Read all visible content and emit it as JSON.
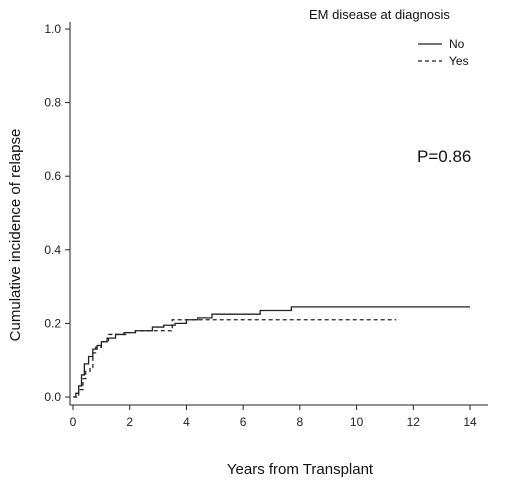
{
  "chart_data": {
    "type": "line",
    "title": "",
    "xlabel": "Years from Transplant",
    "ylabel": "Cumulative incidence of relapse",
    "xlim": [
      0,
      14
    ],
    "ylim": [
      0,
      1.0
    ],
    "x_ticks": [
      0,
      2,
      4,
      6,
      8,
      10,
      12,
      14
    ],
    "y_ticks": [
      0.0,
      0.2,
      0.4,
      0.6,
      0.8,
      1.0
    ],
    "x_tick_labels": [
      "0",
      "2",
      "4",
      "6",
      "8",
      "10",
      "12",
      "14"
    ],
    "y_tick_labels": [
      "0.0",
      "0.2",
      "0.4",
      "0.6",
      "0.8",
      "1.0"
    ],
    "grid": false,
    "legend": {
      "title": "EM disease at diagnosis",
      "placement": "top-right"
    },
    "annotation": "P=0.86",
    "series": [
      {
        "name": "No",
        "line_style": "solid",
        "points": [
          [
            0,
            0.0
          ],
          [
            0.1,
            0.01
          ],
          [
            0.2,
            0.03
          ],
          [
            0.3,
            0.06
          ],
          [
            0.4,
            0.09
          ],
          [
            0.55,
            0.11
          ],
          [
            0.7,
            0.13
          ],
          [
            0.85,
            0.14
          ],
          [
            1.0,
            0.15
          ],
          [
            1.2,
            0.16
          ],
          [
            1.5,
            0.17
          ],
          [
            1.8,
            0.175
          ],
          [
            2.2,
            0.18
          ],
          [
            2.8,
            0.19
          ],
          [
            3.2,
            0.195
          ],
          [
            3.6,
            0.2
          ],
          [
            4.0,
            0.21
          ],
          [
            4.4,
            0.215
          ],
          [
            4.9,
            0.225
          ],
          [
            6.6,
            0.235
          ],
          [
            7.7,
            0.245
          ],
          [
            14.0,
            0.245
          ]
        ]
      },
      {
        "name": "Yes",
        "line_style": "dashed",
        "points": [
          [
            0,
            0.0
          ],
          [
            0.2,
            0.02
          ],
          [
            0.35,
            0.05
          ],
          [
            0.45,
            0.07
          ],
          [
            0.6,
            0.08
          ],
          [
            0.7,
            0.12
          ],
          [
            0.8,
            0.135
          ],
          [
            1.0,
            0.15
          ],
          [
            1.25,
            0.17
          ],
          [
            1.9,
            0.175
          ],
          [
            2.2,
            0.18
          ],
          [
            3.0,
            0.18
          ],
          [
            3.5,
            0.21
          ],
          [
            4.3,
            0.21
          ],
          [
            11.4,
            0.21
          ]
        ]
      }
    ]
  }
}
